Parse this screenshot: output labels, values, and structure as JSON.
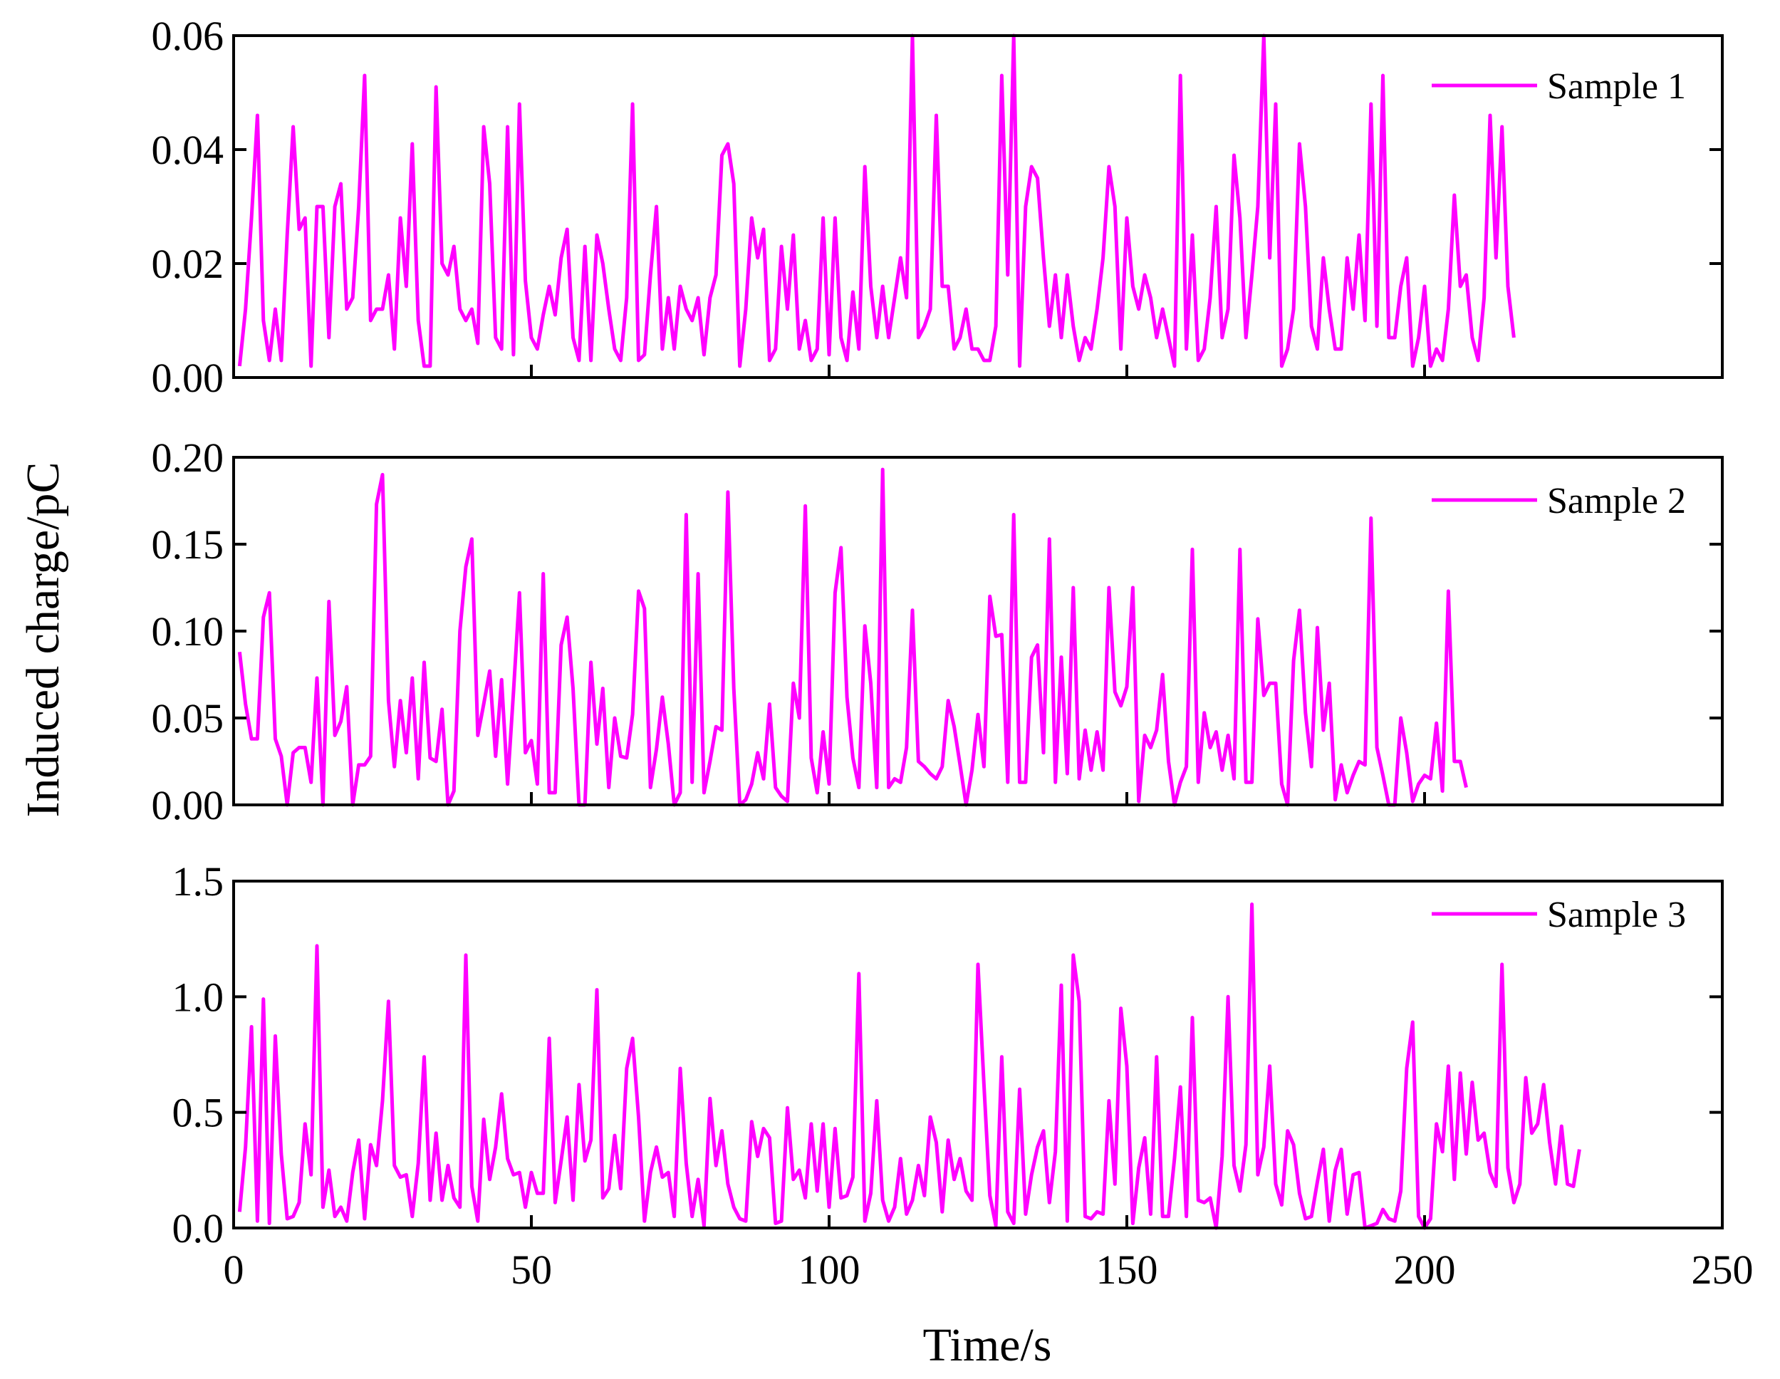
{
  "figure": {
    "ylabel": "Induced charge/pC",
    "xlabel": "Time/s",
    "series_color": "#FF00FF",
    "axis_color": "#000000"
  },
  "chart_data": [
    {
      "type": "line",
      "series": [
        {
          "name": "Sample 1"
        }
      ],
      "legend": "top-right",
      "xlim": [
        0,
        250
      ],
      "ylim": [
        0,
        0.06
      ],
      "xticks": [
        0,
        50,
        100,
        150,
        200,
        250
      ],
      "yticks": [
        0.0,
        0.02,
        0.04,
        0.06
      ],
      "ytick_labels": [
        "0.00",
        "0.02",
        "0.04",
        "0.06"
      ],
      "y": [
        0.002,
        0.012,
        0.028,
        0.046,
        0.01,
        0.003,
        0.012,
        0.003,
        0.025,
        0.044,
        0.026,
        0.028,
        0.002,
        0.03,
        0.03,
        0.007,
        0.03,
        0.034,
        0.012,
        0.014,
        0.03,
        0.053,
        0.01,
        0.012,
        0.012,
        0.018,
        0.005,
        0.028,
        0.016,
        0.041,
        0.01,
        0.002,
        0.002,
        0.051,
        0.02,
        0.018,
        0.023,
        0.012,
        0.01,
        0.012,
        0.006,
        0.044,
        0.034,
        0.007,
        0.005,
        0.044,
        0.004,
        0.048,
        0.017,
        0.007,
        0.005,
        0.011,
        0.016,
        0.011,
        0.021,
        0.026,
        0.007,
        0.003,
        0.023,
        0.003,
        0.025,
        0.02,
        0.012,
        0.005,
        0.003,
        0.014,
        0.048,
        0.003,
        0.004,
        0.018,
        0.03,
        0.005,
        0.014,
        0.005,
        0.016,
        0.012,
        0.01,
        0.014,
        0.004,
        0.014,
        0.018,
        0.039,
        0.041,
        0.034,
        0.002,
        0.012,
        0.028,
        0.021,
        0.026,
        0.003,
        0.005,
        0.023,
        0.012,
        0.025,
        0.005,
        0.01,
        0.003,
        0.005,
        0.028,
        0.004,
        0.028,
        0.007,
        0.003,
        0.015,
        0.005,
        0.037,
        0.016,
        0.007,
        0.016,
        0.007,
        0.014,
        0.021,
        0.014,
        0.06,
        0.007,
        0.009,
        0.012,
        0.046,
        0.016,
        0.016,
        0.005,
        0.007,
        0.012,
        0.005,
        0.005,
        0.003,
        0.003,
        0.009,
        0.053,
        0.018,
        0.06,
        0.002,
        0.03,
        0.037,
        0.035,
        0.021,
        0.009,
        0.018,
        0.007,
        0.018,
        0.009,
        0.003,
        0.007,
        0.005,
        0.012,
        0.021,
        0.037,
        0.03,
        0.005,
        0.028,
        0.016,
        0.012,
        0.018,
        0.014,
        0.007,
        0.012,
        0.007,
        0.002,
        0.053,
        0.005,
        0.025,
        0.003,
        0.005,
        0.014,
        0.03,
        0.007,
        0.012,
        0.039,
        0.028,
        0.007,
        0.018,
        0.03,
        0.06,
        0.021,
        0.048,
        0.002,
        0.005,
        0.012,
        0.041,
        0.03,
        0.009,
        0.005,
        0.021,
        0.012,
        0.005,
        0.005,
        0.021,
        0.012,
        0.025,
        0.01,
        0.048,
        0.009,
        0.053,
        0.007,
        0.007,
        0.016,
        0.021,
        0.002,
        0.007,
        0.016,
        0.002,
        0.005,
        0.003,
        0.012,
        0.032,
        0.016,
        0.018,
        0.007,
        0.003,
        0.014,
        0.046,
        0.021,
        0.044,
        0.016,
        0.007
      ]
    },
    {
      "type": "line",
      "series": [
        {
          "name": "Sample 2"
        }
      ],
      "legend": "top-right",
      "xlim": [
        0,
        250
      ],
      "ylim": [
        0,
        0.2
      ],
      "xticks": [
        0,
        50,
        100,
        150,
        200,
        250
      ],
      "yticks": [
        0.0,
        0.05,
        0.1,
        0.15,
        0.2
      ],
      "ytick_labels": [
        "0.00",
        "0.05",
        "0.10",
        "0.15",
        "0.20"
      ],
      "y": [
        0.088,
        0.058,
        0.038,
        0.038,
        0.108,
        0.122,
        0.038,
        0.028,
        0.0,
        0.03,
        0.033,
        0.033,
        0.013,
        0.073,
        0.0,
        0.117,
        0.04,
        0.048,
        0.068,
        0.0,
        0.023,
        0.023,
        0.028,
        0.173,
        0.19,
        0.06,
        0.022,
        0.06,
        0.03,
        0.073,
        0.015,
        0.082,
        0.027,
        0.025,
        0.055,
        0.0,
        0.008,
        0.1,
        0.137,
        0.153,
        0.04,
        0.058,
        0.077,
        0.028,
        0.072,
        0.012,
        0.065,
        0.122,
        0.03,
        0.037,
        0.012,
        0.133,
        0.007,
        0.007,
        0.092,
        0.108,
        0.067,
        0.0,
        0.0,
        0.082,
        0.035,
        0.067,
        0.01,
        0.05,
        0.028,
        0.027,
        0.052,
        0.123,
        0.113,
        0.01,
        0.032,
        0.062,
        0.035,
        0.0,
        0.007,
        0.167,
        0.013,
        0.133,
        0.007,
        0.025,
        0.045,
        0.043,
        0.18,
        0.067,
        0.0,
        0.003,
        0.012,
        0.03,
        0.015,
        0.058,
        0.01,
        0.005,
        0.002,
        0.07,
        0.05,
        0.172,
        0.027,
        0.007,
        0.042,
        0.012,
        0.122,
        0.148,
        0.062,
        0.027,
        0.01,
        0.103,
        0.07,
        0.01,
        0.193,
        0.01,
        0.015,
        0.013,
        0.033,
        0.112,
        0.025,
        0.022,
        0.018,
        0.015,
        0.022,
        0.06,
        0.045,
        0.023,
        0.0,
        0.02,
        0.052,
        0.022,
        0.12,
        0.097,
        0.098,
        0.013,
        0.167,
        0.013,
        0.013,
        0.085,
        0.092,
        0.03,
        0.153,
        0.013,
        0.085,
        0.018,
        0.125,
        0.015,
        0.043,
        0.02,
        0.042,
        0.02,
        0.125,
        0.065,
        0.057,
        0.068,
        0.125,
        0.002,
        0.04,
        0.033,
        0.043,
        0.075,
        0.025,
        0.0,
        0.013,
        0.022,
        0.147,
        0.013,
        0.053,
        0.033,
        0.042,
        0.02,
        0.04,
        0.015,
        0.147,
        0.013,
        0.013,
        0.107,
        0.063,
        0.07,
        0.07,
        0.012,
        0.0,
        0.083,
        0.112,
        0.053,
        0.022,
        0.102,
        0.043,
        0.07,
        0.003,
        0.023,
        0.007,
        0.017,
        0.025,
        0.023,
        0.165,
        0.033,
        0.017,
        0.0,
        0.0,
        0.05,
        0.03,
        0.002,
        0.012,
        0.017,
        0.015,
        0.047,
        0.008,
        0.123,
        0.025,
        0.025,
        0.01
      ]
    },
    {
      "type": "line",
      "series": [
        {
          "name": "Sample 3"
        }
      ],
      "legend": "top-right",
      "xlim": [
        0,
        250
      ],
      "ylim": [
        0,
        1.5
      ],
      "xticks": [
        0,
        50,
        100,
        150,
        200,
        250
      ],
      "xtick_labels": [
        "0",
        "50",
        "100",
        "150",
        "200",
        "250"
      ],
      "yticks": [
        0.0,
        0.5,
        1.0,
        1.5
      ],
      "ytick_labels": [
        "0.0",
        "0.5",
        "1.0",
        "1.5"
      ],
      "y": [
        0.07,
        0.35,
        0.87,
        0.03,
        0.99,
        0.02,
        0.83,
        0.32,
        0.04,
        0.05,
        0.11,
        0.45,
        0.23,
        1.22,
        0.09,
        0.25,
        0.05,
        0.09,
        0.03,
        0.24,
        0.38,
        0.04,
        0.36,
        0.27,
        0.55,
        0.98,
        0.27,
        0.22,
        0.23,
        0.05,
        0.28,
        0.74,
        0.12,
        0.41,
        0.12,
        0.27,
        0.13,
        0.09,
        1.18,
        0.18,
        0.03,
        0.47,
        0.21,
        0.35,
        0.58,
        0.3,
        0.23,
        0.24,
        0.09,
        0.24,
        0.15,
        0.15,
        0.82,
        0.11,
        0.29,
        0.48,
        0.12,
        0.62,
        0.29,
        0.38,
        1.03,
        0.13,
        0.17,
        0.4,
        0.17,
        0.69,
        0.82,
        0.48,
        0.03,
        0.24,
        0.35,
        0.22,
        0.24,
        0.05,
        0.69,
        0.28,
        0.05,
        0.21,
        0.01,
        0.56,
        0.27,
        0.42,
        0.19,
        0.09,
        0.04,
        0.03,
        0.46,
        0.31,
        0.43,
        0.39,
        0.02,
        0.03,
        0.52,
        0.21,
        0.25,
        0.13,
        0.45,
        0.16,
        0.45,
        0.09,
        0.43,
        0.13,
        0.14,
        0.22,
        1.1,
        0.03,
        0.15,
        0.55,
        0.12,
        0.03,
        0.09,
        0.3,
        0.06,
        0.12,
        0.27,
        0.14,
        0.48,
        0.37,
        0.07,
        0.38,
        0.21,
        0.3,
        0.16,
        0.12,
        1.14,
        0.62,
        0.14,
        0.01,
        0.74,
        0.07,
        0.02,
        0.6,
        0.06,
        0.23,
        0.35,
        0.42,
        0.11,
        0.33,
        1.05,
        0.03,
        1.18,
        0.98,
        0.05,
        0.04,
        0.07,
        0.06,
        0.55,
        0.19,
        0.95,
        0.7,
        0.02,
        0.26,
        0.39,
        0.06,
        0.74,
        0.05,
        0.05,
        0.3,
        0.61,
        0.05,
        0.91,
        0.12,
        0.11,
        0.13,
        0.0,
        0.31,
        1.0,
        0.27,
        0.16,
        0.36,
        1.4,
        0.23,
        0.35,
        0.7,
        0.19,
        0.1,
        0.42,
        0.36,
        0.15,
        0.04,
        0.05,
        0.2,
        0.34,
        0.03,
        0.25,
        0.34,
        0.06,
        0.23,
        0.24,
        0.0,
        0.01,
        0.02,
        0.08,
        0.04,
        0.03,
        0.16,
        0.69,
        0.89,
        0.05,
        0.0,
        0.04,
        0.45,
        0.33,
        0.7,
        0.21,
        0.67,
        0.32,
        0.63,
        0.38,
        0.41,
        0.24,
        0.18,
        1.14,
        0.26,
        0.11,
        0.19,
        0.65,
        0.41,
        0.45,
        0.62,
        0.37,
        0.19,
        0.44,
        0.19,
        0.18,
        0.34
      ]
    }
  ]
}
